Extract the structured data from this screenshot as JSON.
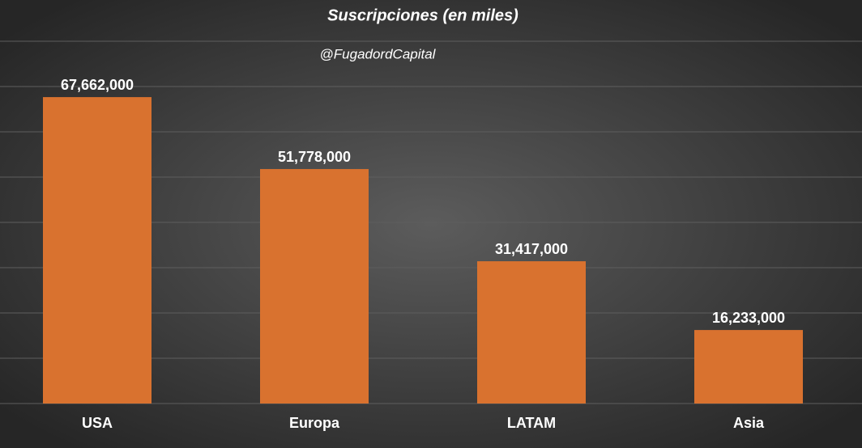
{
  "chart_data": {
    "type": "bar",
    "title": "Suscripciones (en miles)",
    "subtitle": "@FugadordCapital",
    "categories": [
      "USA",
      "Europa",
      "LATAM",
      "Asia"
    ],
    "values": [
      67662000,
      51778000,
      31417000,
      16233000
    ],
    "value_labels": [
      "67,662,000",
      "51,778,000",
      "31,417,000",
      "16,233,000"
    ],
    "color": "#d9722f",
    "ylim": [
      0,
      80000000
    ],
    "yticks": [
      0,
      10000000,
      20000000,
      30000000,
      40000000,
      50000000,
      60000000,
      70000000,
      80000000
    ],
    "grid": true
  }
}
